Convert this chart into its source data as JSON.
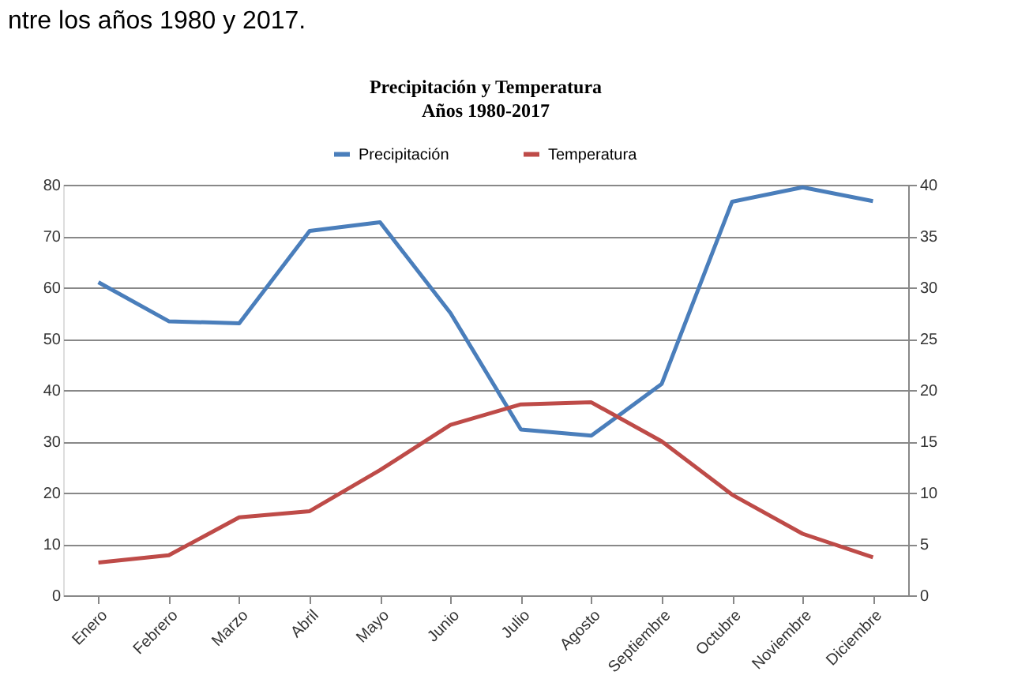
{
  "chart_data": {
    "type": "line",
    "title": "Precipitación y Temperatura",
    "subtitle": "Años 1980-2017",
    "annotations": [
      "ntre los años 1980 y 2017."
    ],
    "categories": [
      "Enero",
      "Febrero",
      "Marzo",
      "Abril",
      "Mayo",
      "Junio",
      "Julio",
      "Agosto",
      "Septiembre",
      "Octubre",
      "Noviembre",
      "Diciembre"
    ],
    "series": [
      {
        "name": "Precipitación",
        "color": "#4a7ebb",
        "values": [
          61,
          53.4,
          53,
          71,
          72.7,
          55,
          32.3,
          31.1,
          41.2,
          76.7,
          79.5,
          76.8
        ]
      },
      {
        "name": "Temperatura",
        "color": "#be4b48",
        "axis": "y2",
        "values": [
          3.2,
          3.9,
          7.6,
          8.2,
          12.2,
          16.6,
          18.6,
          18.8,
          15,
          9.8,
          6,
          3.7
        ]
      }
    ],
    "ylim": [
      0,
      80
    ],
    "yticks": [
      0,
      10,
      20,
      30,
      40,
      50,
      60,
      70,
      80
    ],
    "y2lim": [
      0,
      40
    ],
    "y2ticks": [
      0,
      5,
      10,
      15,
      20,
      25,
      30,
      35,
      40
    ],
    "grid": "y",
    "legend": "top",
    "marker": "none",
    "line_style": "solid"
  }
}
